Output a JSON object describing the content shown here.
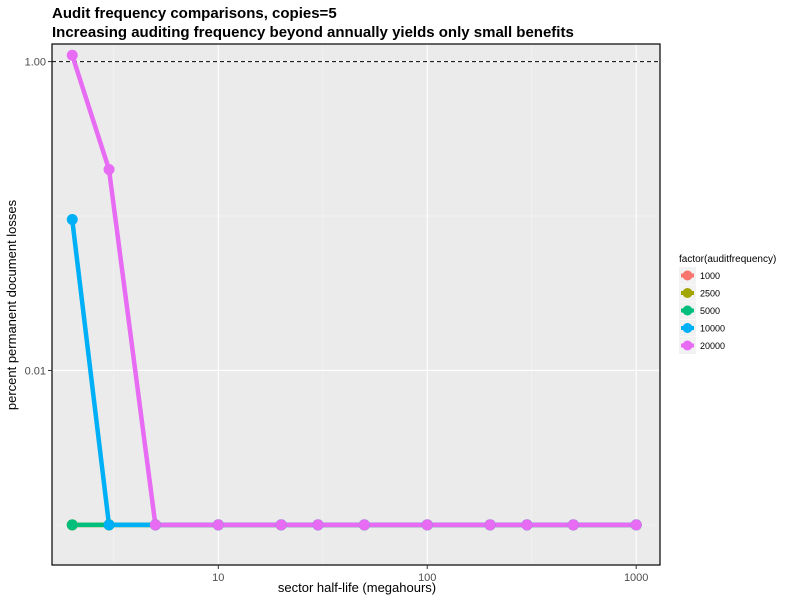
{
  "chart_data": {
    "type": "line",
    "title": "Audit frequency comparisons, copies=5",
    "subtitle": "Increasing auditing frequency beyond annually yields only small benefits",
    "xlabel": "sector half-life (megahours)",
    "ylabel": "percent permanent document losses",
    "x_scale": "log",
    "y_scale": "log",
    "xlim": [
      1.6,
      1300
    ],
    "ylim": [
      0.00055,
      1.3
    ],
    "x_ticks": [
      10,
      100,
      1000
    ],
    "x_tick_labels": [
      "10",
      "100",
      "1000"
    ],
    "y_ticks": [
      1.0,
      0.01
    ],
    "y_tick_labels": [
      "1.00",
      "0.01"
    ],
    "grid": true,
    "reference_line": {
      "y": 1.0,
      "style": "dashed"
    },
    "legend": {
      "title": "factor(auditfrequency)",
      "position": "right",
      "entries": [
        "1000",
        "2500",
        "5000",
        "10000",
        "20000"
      ]
    },
    "x": [
      2,
      3,
      5,
      10,
      20,
      30,
      50,
      100,
      200,
      300,
      500,
      1000
    ],
    "series": [
      {
        "name": "1000",
        "color": "#F8766D",
        "values": [
          0.001,
          0.001,
          0.001,
          0.001,
          0.001,
          0.001,
          0.001,
          0.001,
          0.001,
          0.001,
          0.001,
          0.001
        ]
      },
      {
        "name": "2500",
        "color": "#A3A500",
        "values": [
          0.001,
          0.001,
          0.001,
          0.001,
          0.001,
          0.001,
          0.001,
          0.001,
          0.001,
          0.001,
          0.001,
          0.001
        ]
      },
      {
        "name": "5000",
        "color": "#00BF7D",
        "values": [
          0.001,
          0.001,
          0.001,
          0.001,
          0.001,
          0.001,
          0.001,
          0.001,
          0.001,
          0.001,
          0.001,
          0.001
        ]
      },
      {
        "name": "10000",
        "color": "#00B0F6",
        "values": [
          0.095,
          0.001,
          0.001,
          0.001,
          0.001,
          0.001,
          0.001,
          0.001,
          0.001,
          0.001,
          0.001,
          0.001
        ]
      },
      {
        "name": "20000",
        "color": "#E76BF3",
        "values": [
          1.1,
          0.2,
          0.001,
          0.001,
          0.001,
          0.001,
          0.001,
          0.001,
          0.001,
          0.001,
          0.001,
          0.001
        ]
      }
    ]
  }
}
